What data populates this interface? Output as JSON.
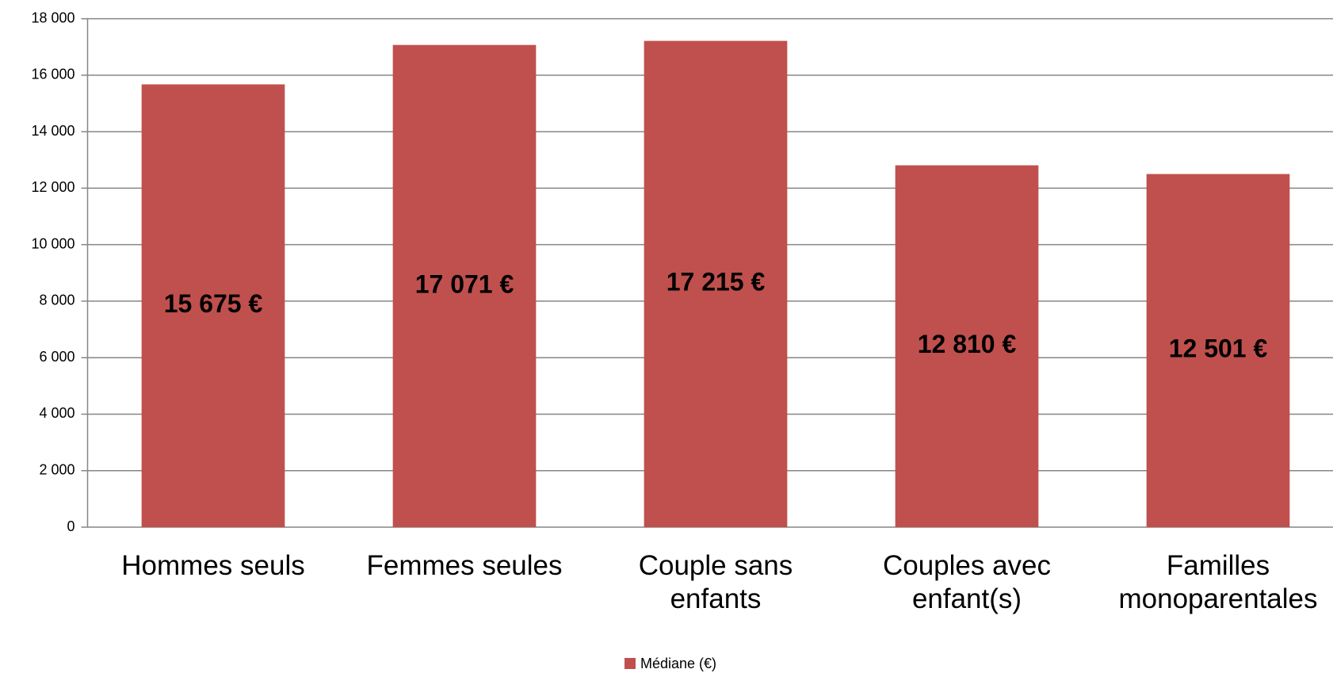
{
  "chart_data": {
    "type": "bar",
    "categories": [
      "Hommes seuls",
      "Femmes seules",
      "Couple sans\nenfants",
      "Couples avec\nenfant(s)",
      "Familles\nmonoparentales"
    ],
    "series": [
      {
        "name": "Médiane (€)",
        "color": "#c0504d",
        "values": [
          15675,
          17071,
          17215,
          12810,
          12501
        ],
        "value_labels": [
          "15 675 €",
          "17 071 €",
          "17 215 €",
          "12 810 €",
          "12 501 €"
        ]
      }
    ],
    "ylim": [
      0,
      18000
    ],
    "yticks": [
      0,
      {
        "value": 2000,
        "label": "2 000"
      },
      {
        "value": 4000,
        "label": "4 000"
      },
      {
        "value": 6000,
        "label": "6 000"
      },
      {
        "value": 8000,
        "label": "8 000"
      },
      {
        "value": 10000,
        "label": "10 000"
      },
      {
        "value": 12000,
        "label": "12 000"
      },
      {
        "value": 14000,
        "label": "14 000"
      },
      {
        "value": 16000,
        "label": "16 000"
      },
      {
        "value": 18000,
        "label": "18 000"
      }
    ],
    "grid": true,
    "legend": "bottom"
  }
}
